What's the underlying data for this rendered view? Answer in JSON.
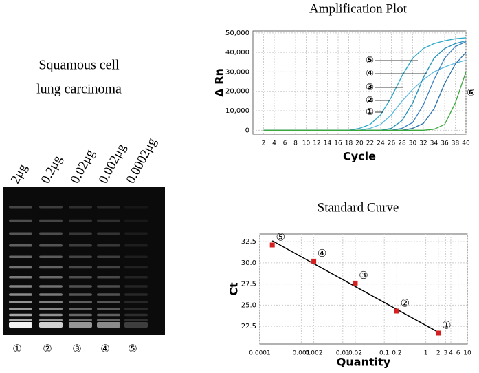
{
  "gel": {
    "title_lines": [
      "Squamous cell",
      "lung carcinoma"
    ],
    "lane_labels": [
      "2μg",
      "0.2μg",
      "0.02μg",
      "0.002μg",
      "0.0002μg"
    ],
    "lane_numbers": [
      "①",
      "②",
      "③",
      "④",
      "⑤"
    ]
  },
  "chart_data": [
    {
      "type": "line",
      "title": "Amplification Plot",
      "x_label": "Cycle",
      "y_label": "Δ Rn",
      "x": [
        2,
        4,
        6,
        8,
        10,
        12,
        14,
        16,
        18,
        20,
        22,
        24,
        26,
        28,
        30,
        32,
        34,
        36,
        38,
        40
      ],
      "series": [
        {
          "color": "#2aa8c8",
          "values": [
            0,
            0,
            0,
            0,
            0,
            0,
            0,
            0,
            0,
            1000,
            3000,
            8000,
            17000,
            28000,
            37000,
            42000,
            44500,
            46000,
            47000,
            47500
          ]
        },
        {
          "color": "#5bb8e0",
          "values": [
            0,
            0,
            0,
            0,
            0,
            0,
            0,
            0,
            0,
            0,
            1000,
            3000,
            8000,
            15000,
            21000,
            26000,
            30000,
            32500,
            34500,
            36000
          ]
        },
        {
          "color": "#1f8fb8",
          "values": [
            0,
            0,
            0,
            0,
            0,
            0,
            0,
            0,
            0,
            0,
            0,
            0,
            1000,
            5000,
            14000,
            27000,
            37000,
            42000,
            44500,
            46000
          ]
        },
        {
          "color": "#3a7fc0",
          "values": [
            0,
            0,
            0,
            0,
            0,
            0,
            0,
            0,
            0,
            0,
            0,
            0,
            0,
            1000,
            4000,
            13000,
            26000,
            37000,
            43000,
            45500
          ]
        },
        {
          "color": "#2b6fa8",
          "values": [
            0,
            0,
            0,
            0,
            0,
            0,
            0,
            0,
            0,
            0,
            0,
            0,
            0,
            0,
            1000,
            3500,
            11000,
            24000,
            34000,
            40000
          ]
        },
        {
          "color": "#3aa83a",
          "values": [
            0,
            0,
            0,
            0,
            0,
            0,
            0,
            0,
            0,
            0,
            0,
            0,
            0,
            0,
            0,
            0,
            500,
            3000,
            14000,
            30000
          ]
        }
      ],
      "annotations": [
        "⑤",
        "④",
        "③",
        "②",
        "①",
        "⑥"
      ],
      "xlim": [
        0,
        40
      ],
      "xticks": [
        2,
        4,
        6,
        8,
        10,
        12,
        14,
        16,
        18,
        20,
        22,
        24,
        26,
        28,
        30,
        32,
        34,
        36,
        38,
        40
      ],
      "ylim": [
        -2000,
        51000
      ],
      "yticks": [
        0,
        {
          "value": 10000,
          "label": "10,000"
        },
        {
          "value": 20000,
          "label": "20,000"
        },
        {
          "value": 30000,
          "label": "30,000"
        },
        {
          "value": 40000,
          "label": "40,000"
        },
        {
          "value": 50000,
          "label": "50,000"
        }
      ],
      "grid": true
    },
    {
      "type": "scatter",
      "title": "Standard Curve",
      "x_label": "Quantity",
      "y_label": "Ct",
      "x": [
        0.0002,
        0.002,
        0.02,
        0.2,
        2
      ],
      "values": [
        32.1,
        30.2,
        27.6,
        24.3,
        21.7
      ],
      "color": "#d42020",
      "fit_line": {
        "x": [
          0.0002,
          2
        ],
        "values": [
          32.6,
          21.8
        ],
        "color": "#000000"
      },
      "annotations": [
        "⑤",
        "④",
        "③",
        "②",
        "①"
      ],
      "log_x": true,
      "xlim": [
        0.0001,
        10
      ],
      "xticks": [
        0.0001,
        0.001,
        0.002,
        0.01,
        0.02,
        0.1,
        0.2,
        1,
        2,
        3,
        4,
        6,
        10
      ],
      "ylim": [
        20.4,
        33.4
      ],
      "yticks": [
        22.5,
        {
          "value": 25,
          "label": "25.0"
        },
        27.5,
        {
          "value": 30,
          "label": "30.0"
        },
        32.5
      ],
      "grid": true
    }
  ]
}
